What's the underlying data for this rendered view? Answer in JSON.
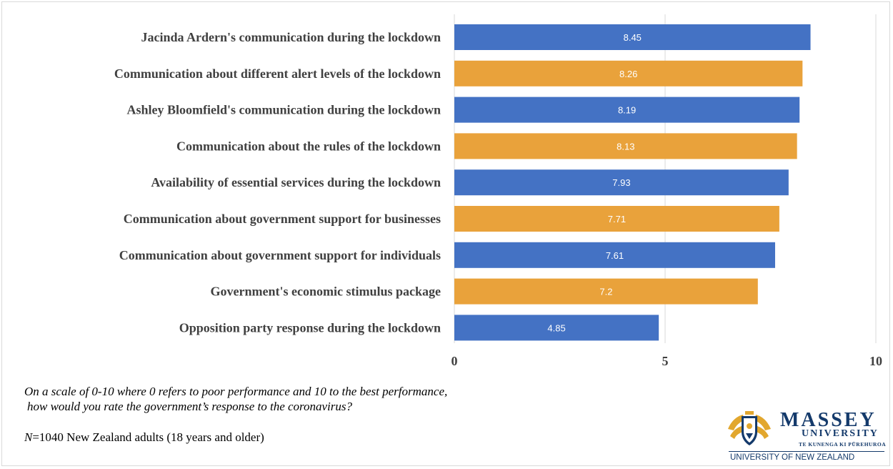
{
  "chart_data": {
    "type": "bar",
    "orientation": "horizontal",
    "categories": [
      "Jacinda Ardern's communication during the lockdown",
      "Communication about different alert levels of the lockdown",
      "Ashley Bloomfield's communication during the lockdown",
      "Communication about the rules of the lockdown",
      "Availability of essential services during the lockdown",
      "Communication about government support for businesses",
      "Communication about government support for individuals",
      "Government's economic stimulus package",
      "Opposition party response during the lockdown"
    ],
    "values": [
      8.45,
      8.26,
      8.19,
      8.13,
      7.93,
      7.71,
      7.61,
      7.2,
      4.85
    ],
    "value_labels": [
      "8.45",
      "8.26",
      "8.19",
      "8.13",
      "7.93",
      "7.71",
      "7.61",
      "7.2",
      "4.85"
    ],
    "bar_colors": [
      "#4472c4",
      "#e9a23b",
      "#4472c4",
      "#e9a23b",
      "#4472c4",
      "#e9a23b",
      "#4472c4",
      "#e9a23b",
      "#4472c4"
    ],
    "xlim": [
      0,
      10
    ],
    "xticks": [
      0,
      5,
      10
    ],
    "xtick_labels": [
      "0",
      "5",
      "10"
    ],
    "grid": "vertical"
  },
  "caption": {
    "question_line1": "On a scale of 0-10 where 0 refers to poor performance and 10 to the best performance,",
    "question_line2": "how would you rate the government’s response to the coronavirus?",
    "sample_n": "N",
    "sample_text": "=1040 New Zealand adults (18 years and older)"
  },
  "logo": {
    "name": "MASSEY",
    "subname": "UNIVERSITY",
    "maori": "TE KUNENGA KI PŪREHUROA",
    "tagline": "UNIVERSITY OF NEW ZEALAND",
    "colors": {
      "navy": "#143a6b",
      "gold": "#e2a72e"
    }
  }
}
